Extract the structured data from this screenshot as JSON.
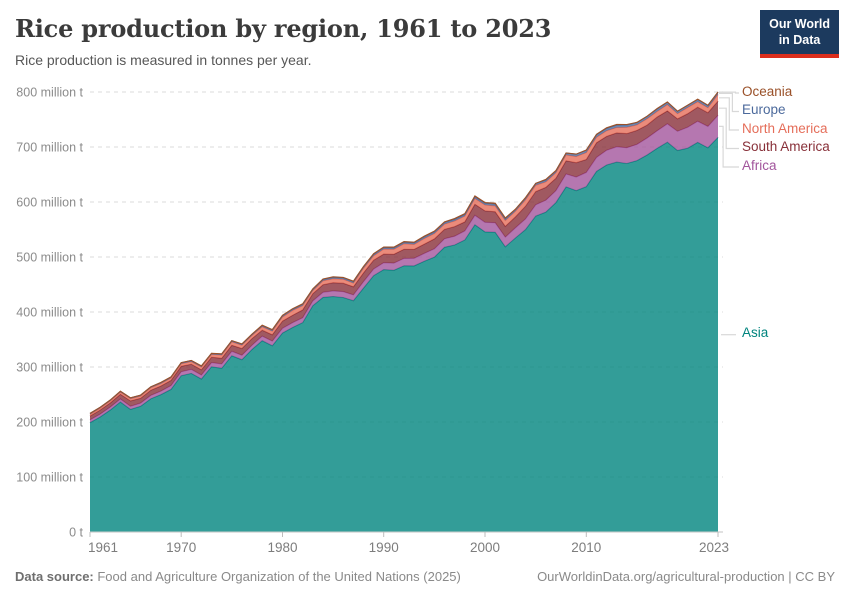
{
  "header": {
    "title": "Rice production by region, 1961 to 2023",
    "subtitle": "Rice production is measured in tonnes per year.",
    "logo": {
      "line1": "Our World",
      "line2": "in Data",
      "bg": "#1c3a5e",
      "accent": "#dc2e1c"
    }
  },
  "footer": {
    "source_label": "Data source:",
    "source_text": " Food and Agriculture Organization of the United Nations (2025)",
    "credit": "OurWorldinData.org/agricultural-production | CC BY"
  },
  "legend": {
    "items": [
      {
        "label": "Oceania",
        "series": 5
      },
      {
        "label": "Europe",
        "series": 4
      },
      {
        "label": "North America",
        "series": 3
      },
      {
        "label": "South America",
        "series": 2
      },
      {
        "label": "Africa",
        "series": 1
      },
      {
        "label": "Asia",
        "series": 0,
        "separate": true
      }
    ]
  },
  "chart_data": {
    "type": "area",
    "stacked": true,
    "title": "Rice production by region, 1961 to 2023",
    "unit": "tonnes per year",
    "xlabel": "",
    "ylabel": "million tonnes",
    "ylim": [
      0,
      800
    ],
    "grid": "dashed-horizontal",
    "legend_position": "right",
    "x": [
      1961,
      1962,
      1963,
      1964,
      1965,
      1966,
      1967,
      1968,
      1969,
      1970,
      1971,
      1972,
      1973,
      1974,
      1975,
      1976,
      1977,
      1978,
      1979,
      1980,
      1981,
      1982,
      1983,
      1984,
      1985,
      1986,
      1987,
      1988,
      1989,
      1990,
      1991,
      1992,
      1993,
      1994,
      1995,
      1996,
      1997,
      1998,
      1999,
      2000,
      2001,
      2002,
      2003,
      2004,
      2005,
      2006,
      2007,
      2008,
      2009,
      2010,
      2011,
      2012,
      2013,
      2014,
      2015,
      2016,
      2017,
      2018,
      2019,
      2020,
      2021,
      2022,
      2023
    ],
    "xticks": [
      1961,
      1970,
      1980,
      1990,
      2000,
      2010,
      2023
    ],
    "yticks": [
      {
        "value": 0,
        "label": "0 t"
      },
      {
        "value": 100,
        "label": "100 million t"
      },
      {
        "value": 200,
        "label": "200 million t"
      },
      {
        "value": 300,
        "label": "300 million t"
      },
      {
        "value": 400,
        "label": "400 million t"
      },
      {
        "value": 500,
        "label": "500 million t"
      },
      {
        "value": 600,
        "label": "600 million t"
      },
      {
        "value": 700,
        "label": "700 million t"
      },
      {
        "value": 800,
        "label": "800 million t"
      }
    ],
    "series": [
      {
        "name": "Asia",
        "color": "#00847e",
        "values": [
          199.0,
          209.1,
          221.8,
          236.3,
          222.9,
          228.6,
          242.1,
          249.8,
          259.2,
          284.2,
          288.3,
          278.2,
          300.4,
          297.7,
          320.4,
          313.3,
          332.0,
          347.9,
          338.6,
          361.8,
          371.8,
          380.7,
          411.4,
          426.5,
          428.1,
          426.4,
          420.5,
          443.5,
          466.0,
          477.1,
          475.8,
          484.0,
          483.9,
          492.2,
          499.9,
          517.6,
          521.9,
          530.9,
          558.6,
          545.6,
          545.0,
          518.5,
          534.6,
          549.9,
          574.3,
          581.7,
          598.9,
          627.4,
          620.7,
          627.8,
          655.6,
          667.2,
          672.6,
          670.0,
          675.3,
          685.4,
          697.6,
          708.7,
          693.6,
          697.8,
          708.4,
          698.5,
          717.4
        ]
      },
      {
        "name": "Africa",
        "color": "#a2559c",
        "values": [
          4.9,
          5.1,
          5.3,
          5.5,
          5.6,
          5.8,
          6.2,
          6.4,
          6.9,
          7.3,
          7.4,
          7.2,
          7.6,
          7.9,
          8.1,
          8.2,
          7.9,
          8.2,
          8.4,
          8.6,
          8.9,
          9.0,
          8.8,
          9.4,
          10.3,
          10.7,
          10.6,
          11.8,
          12.2,
          12.6,
          13.2,
          13.5,
          13.8,
          14.3,
          15.1,
          15.7,
          16.0,
          16.5,
          17.2,
          17.5,
          17.3,
          17.7,
          18.5,
          19.4,
          20.6,
          21.6,
          21.8,
          23.5,
          24.8,
          26.0,
          25.5,
          27.0,
          27.8,
          28.8,
          29.5,
          31.0,
          32.0,
          33.5,
          35.0,
          38.0,
          38.5,
          39.0,
          40.1
        ]
      },
      {
        "name": "South America",
        "color": "#883039",
        "values": [
          6.9,
          7.4,
          7.6,
          8.6,
          9.8,
          8.7,
          9.6,
          9.3,
          9.5,
          9.8,
          9.4,
          9.6,
          9.8,
          10.3,
          11.0,
          12.2,
          12.0,
          10.8,
          11.6,
          13.0,
          13.3,
          14.2,
          13.1,
          13.8,
          14.8,
          15.3,
          14.7,
          15.8,
          15.9,
          15.6,
          15.9,
          16.5,
          16.2,
          17.0,
          18.0,
          16.8,
          17.4,
          16.5,
          20.0,
          20.7,
          19.8,
          19.5,
          19.8,
          23.0,
          24.0,
          23.2,
          22.4,
          24.0,
          26.0,
          23.5,
          26.5,
          25.0,
          25.2,
          25.5,
          25.3,
          23.5,
          25.0,
          23.5,
          22.5,
          24.5,
          25.5,
          24.8,
          26.0
        ]
      },
      {
        "name": "North America",
        "color": "#e56e5a",
        "values": [
          3.1,
          3.3,
          3.5,
          3.7,
          3.8,
          4.0,
          4.2,
          4.4,
          4.3,
          4.6,
          4.7,
          4.8,
          4.9,
          5.7,
          6.1,
          5.8,
          5.5,
          6.4,
          6.5,
          7.5,
          8.9,
          7.8,
          5.6,
          7.0,
          7.2,
          7.3,
          6.8,
          8.3,
          8.1,
          9.0,
          9.2,
          10.0,
          9.0,
          10.2,
          9.7,
          9.7,
          10.1,
          10.5,
          10.6,
          10.8,
          10.9,
          10.7,
          10.4,
          11.7,
          11.4,
          10.0,
          10.1,
          10.5,
          11.2,
          12.5,
          10.0,
          10.4,
          9.9,
          11.5,
          10.0,
          11.5,
          10.2,
          11.4,
          9.6,
          11.5,
          9.8,
          9.2,
          12.0
        ]
      },
      {
        "name": "Europe",
        "color": "#4c6a9c",
        "values": [
          1.5,
          1.6,
          1.6,
          1.7,
          1.7,
          1.7,
          1.7,
          1.8,
          1.8,
          1.8,
          1.9,
          1.9,
          2.0,
          2.0,
          2.0,
          2.1,
          2.1,
          2.2,
          2.3,
          2.4,
          2.4,
          2.5,
          2.5,
          2.6,
          2.7,
          2.6,
          2.6,
          2.7,
          2.8,
          2.9,
          2.8,
          2.9,
          2.9,
          3.0,
          3.1,
          3.1,
          3.2,
          3.1,
          3.2,
          3.2,
          3.2,
          3.3,
          3.3,
          3.4,
          3.4,
          3.5,
          3.6,
          3.6,
          4.2,
          4.4,
          4.6,
          4.4,
          4.3,
          4.3,
          4.2,
          4.3,
          4.4,
          4.3,
          4.2,
          4.1,
          4.2,
          3.8,
          4.0
        ]
      },
      {
        "name": "Oceania",
        "color": "#9a5129",
        "values": [
          0.2,
          0.2,
          0.2,
          0.2,
          0.2,
          0.2,
          0.2,
          0.3,
          0.3,
          0.3,
          0.3,
          0.3,
          0.3,
          0.4,
          0.4,
          0.4,
          0.5,
          0.5,
          0.6,
          0.7,
          0.7,
          0.8,
          0.6,
          0.7,
          0.9,
          0.7,
          0.8,
          0.9,
          1.0,
          1.0,
          1.1,
          1.1,
          1.2,
          1.3,
          1.2,
          1.1,
          1.4,
          1.5,
          1.4,
          1.2,
          1.8,
          1.3,
          0.4,
          0.6,
          0.3,
          1.0,
          0.2,
          0.1,
          0.1,
          0.3,
          0.8,
          1.0,
          1.2,
          0.9,
          0.7,
          0.3,
          0.8,
          0.6,
          0.1,
          0.1,
          0.6,
          0.7,
          0.5
        ]
      }
    ]
  }
}
